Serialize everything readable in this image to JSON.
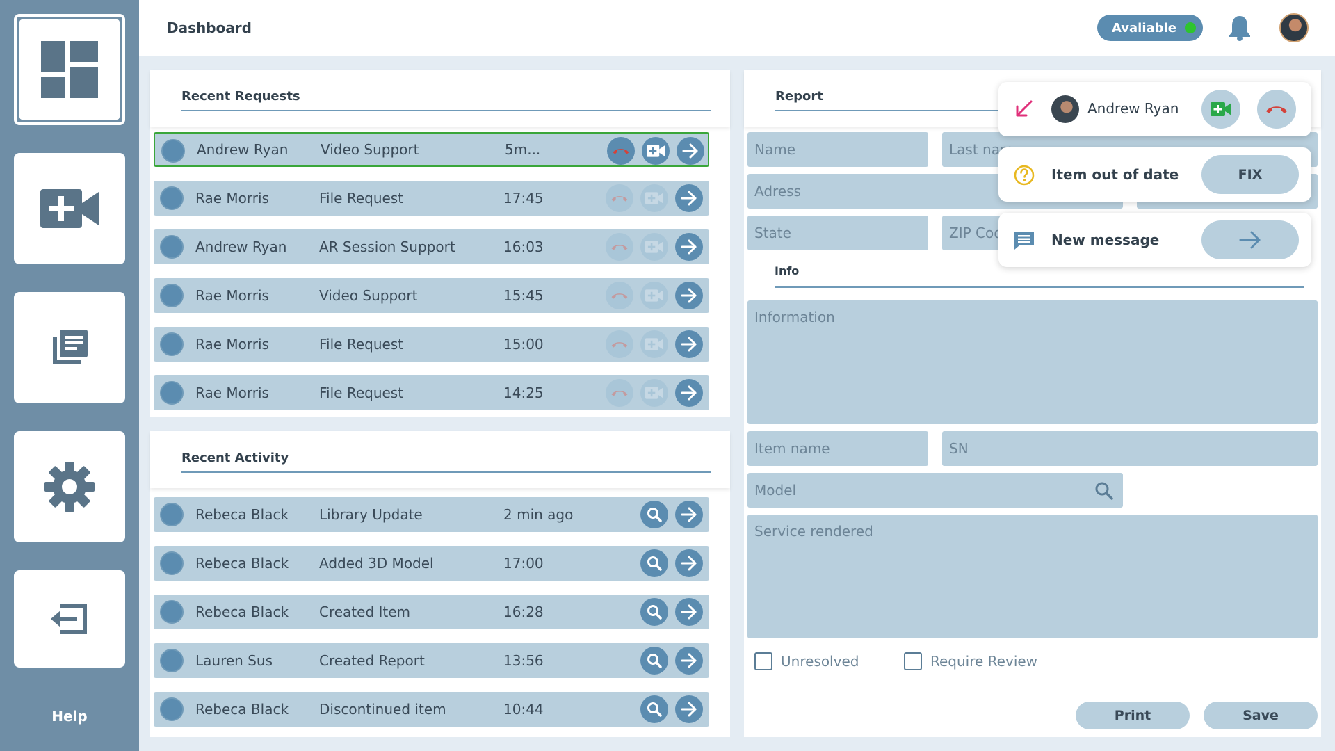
{
  "header": {
    "title": "Dashboard",
    "status_label": "Avaliable",
    "status_color": "#2ec42e"
  },
  "sidebar": {
    "items": [
      {
        "name": "dashboard",
        "icon": "dashboard-grid-icon",
        "active": true
      },
      {
        "name": "new-video-call",
        "icon": "video-plus-icon",
        "active": false
      },
      {
        "name": "library",
        "icon": "library-documents-icon",
        "active": false
      },
      {
        "name": "settings",
        "icon": "gear-icon",
        "active": false
      },
      {
        "name": "logout",
        "icon": "exit-icon",
        "active": false
      }
    ],
    "help_label": "Help"
  },
  "recent_requests": {
    "title": "Recent Requests",
    "rows": [
      {
        "name": "Andrew Ryan",
        "type": "Video Support",
        "time": "5m...",
        "active": true
      },
      {
        "name": "Rae Morris",
        "type": "File Request",
        "time": "17:45",
        "active": false
      },
      {
        "name": "Andrew Ryan",
        "type": "AR Session Support",
        "time": "16:03",
        "active": false
      },
      {
        "name": "Rae Morris",
        "type": "Video Support",
        "time": "15:45",
        "active": false
      },
      {
        "name": "Rae Morris",
        "type": "File Request",
        "time": "15:00",
        "active": false
      },
      {
        "name": "Rae Morris",
        "type": "File Request",
        "time": "14:25",
        "active": false
      }
    ]
  },
  "recent_activity": {
    "title": "Recent Activity",
    "rows": [
      {
        "name": "Rebeca Black",
        "type": "Library Update",
        "time": "2 min ago"
      },
      {
        "name": "Rebeca Black",
        "type": "Added 3D Model",
        "time": "17:00"
      },
      {
        "name": "Rebeca Black",
        "type": "Created Item",
        "time": "16:28"
      },
      {
        "name": "Lauren Sus",
        "type": "Created Report",
        "time": "13:56"
      },
      {
        "name": "Rebeca Black",
        "type": "Discontinued item",
        "time": "10:44"
      }
    ]
  },
  "report": {
    "title": "Report",
    "fields": {
      "name": "Name",
      "last_name": "Last nam",
      "address": "Adress",
      "state": "State",
      "zip": "ZIP Cod",
      "information": "Information",
      "item_name": "Item name",
      "sn": "SN",
      "model": "Model",
      "service": "Service rendered"
    },
    "info_label": "Info",
    "checks": {
      "unresolved": "Unresolved",
      "require_review": "Require Review"
    },
    "print_label": "Print",
    "save_label": "Save"
  },
  "notifications": {
    "call": {
      "caller": "Andrew Ryan"
    },
    "alert": {
      "text": "Item out of date",
      "button": "FIX"
    },
    "message": {
      "text": "New message"
    }
  }
}
